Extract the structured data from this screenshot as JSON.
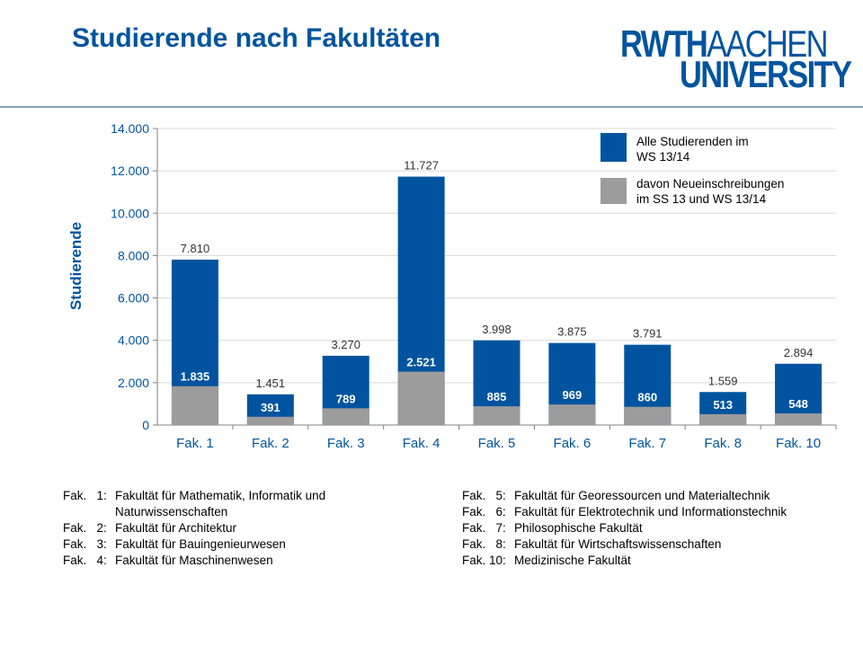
{
  "slide": {
    "title": "Studierende nach Fakultäten",
    "logo": {
      "line1_bold": "RWTH",
      "line1_rest": "AACHEN",
      "line2": "UNIVERSITY"
    }
  },
  "colors": {
    "brand": "#00549f",
    "series_total": "#00549f",
    "series_new": "#9c9c9c",
    "title": "#00549f"
  },
  "chart_data": {
    "type": "bar",
    "categories": [
      "Fak. 1",
      "Fak. 2",
      "Fak. 3",
      "Fak. 4",
      "Fak. 5",
      "Fak. 6",
      "Fak. 7",
      "Fak. 8",
      "Fak. 10"
    ],
    "series": [
      {
        "name": "Alle Studierenden im WS 13/14",
        "values": [
          7810,
          1451,
          3270,
          11727,
          3998,
          3875,
          3791,
          1559,
          2894
        ],
        "labels": [
          "7.810",
          "1.451",
          "3.270",
          "11.727",
          "3.998",
          "3.875",
          "3.791",
          "1.559",
          "2.894"
        ],
        "color": "#00549f"
      },
      {
        "name": "davon Neueinschreibungen im SS 13 und WS 13/14",
        "values": [
          1835,
          391,
          789,
          2521,
          885,
          969,
          860,
          513,
          548
        ],
        "labels": [
          "1.835",
          "391",
          "789",
          "2.521",
          "885",
          "969",
          "860",
          "513",
          "548"
        ],
        "color": "#9c9c9c"
      }
    ],
    "legend": [
      {
        "lines": [
          "Alle Studierenden im",
          "WS 13/14"
        ]
      },
      {
        "lines": [
          "davon Neueinschreibungen",
          "im SS 13 und WS 13/14"
        ]
      }
    ],
    "legend_position": "top-right",
    "ylabel": "Studierende",
    "xlabel": "",
    "ylim": [
      0,
      14000
    ],
    "yticks": [
      0,
      2000,
      4000,
      6000,
      8000,
      10000,
      12000,
      14000
    ],
    "ytick_labels": [
      "0",
      "2.000",
      "4.000",
      "6.000",
      "8.000",
      "10.000",
      "12.000",
      "14.000"
    ],
    "grid": true
  },
  "faculties_left": [
    {
      "code": "Fak.   1:",
      "name": "Fakultät für Mathematik, Informatik und"
    },
    {
      "code": "",
      "name": "Naturwissenschaften"
    },
    {
      "code": "Fak.   2:",
      "name": "Fakultät für Architektur"
    },
    {
      "code": "Fak.   3:",
      "name": "Fakultät für Bauingenieurwesen"
    },
    {
      "code": "Fak.   4:",
      "name": "Fakultät für Maschinenwesen"
    }
  ],
  "faculties_right": [
    {
      "code": "Fak.   5:",
      "name": "Fakultät für Georessourcen und Materialtechnik"
    },
    {
      "code": "Fak.   6:",
      "name": "Fakultät für Elektrotechnik und Informationstechnik"
    },
    {
      "code": "Fak.   7:",
      "name": "Philosophische Fakultät"
    },
    {
      "code": "Fak.   8:",
      "name": "Fakultät für Wirtschaftswissenschaften"
    },
    {
      "code": "Fak. 10:",
      "name": "Medizinische Fakultät"
    }
  ]
}
